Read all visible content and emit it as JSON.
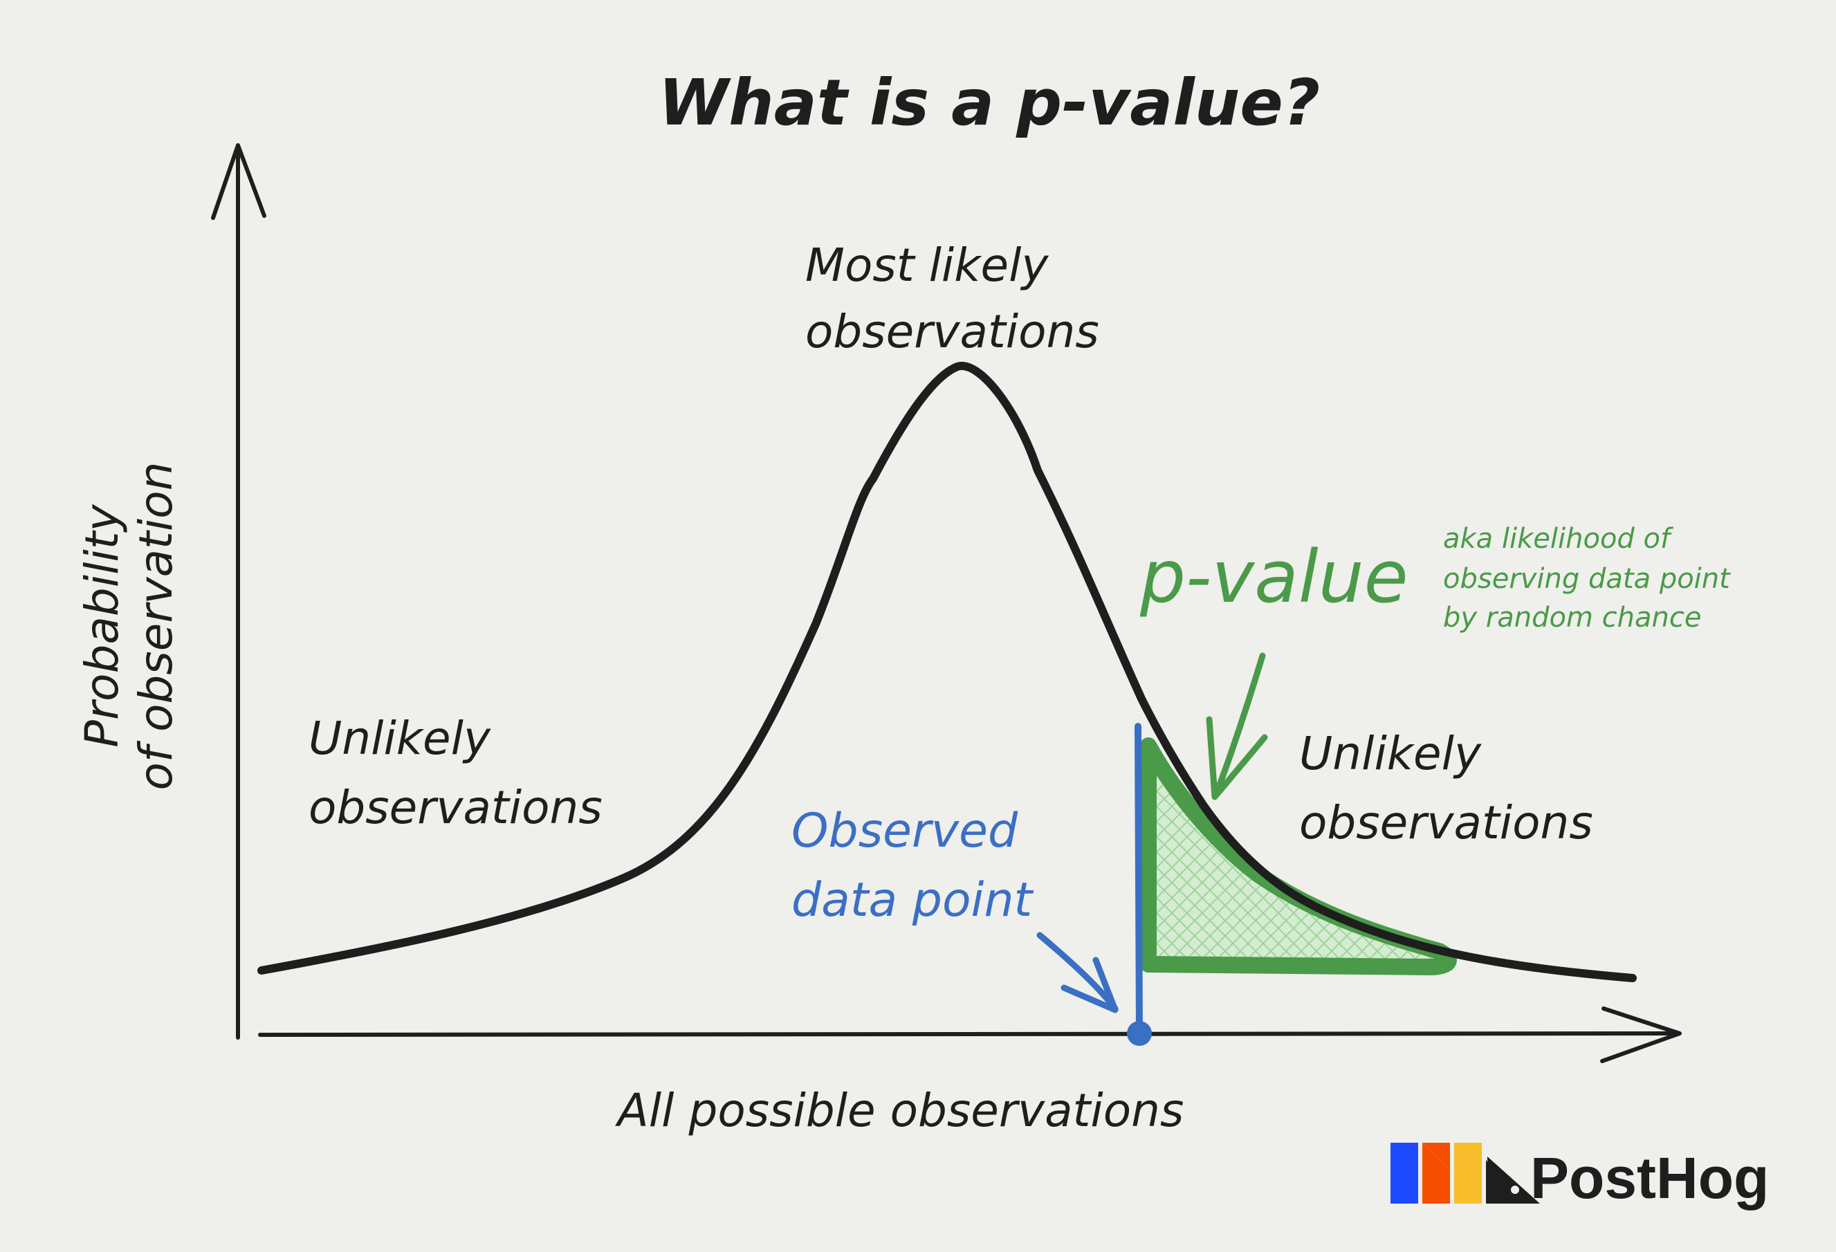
{
  "title": "What is a p-value?",
  "y_axis_label": [
    "Probability",
    "of observation"
  ],
  "x_axis_label": "All possible observations",
  "peak_label": [
    "Most likely",
    "observations"
  ],
  "left_tail_label": [
    "Unlikely",
    "observations"
  ],
  "right_tail_label": [
    "Unlikely",
    "observations"
  ],
  "observed_label": [
    "Observed",
    "data point"
  ],
  "pvalue_label": "p-value",
  "pvalue_note": [
    "aka likelihood of",
    "observing data point",
    "by random chance"
  ],
  "logo": {
    "text": "PostHog"
  },
  "colors": {
    "background": "#efefeb",
    "ink": "#1e1e1e",
    "observed": "#3a6fc4",
    "pvalue": "#4a9a49",
    "pvalue_fill": "#d4ecd2",
    "logo_blue": "#1d4aff",
    "logo_orange": "#f54e00",
    "logo_yellow": "#f9bd2b"
  }
}
